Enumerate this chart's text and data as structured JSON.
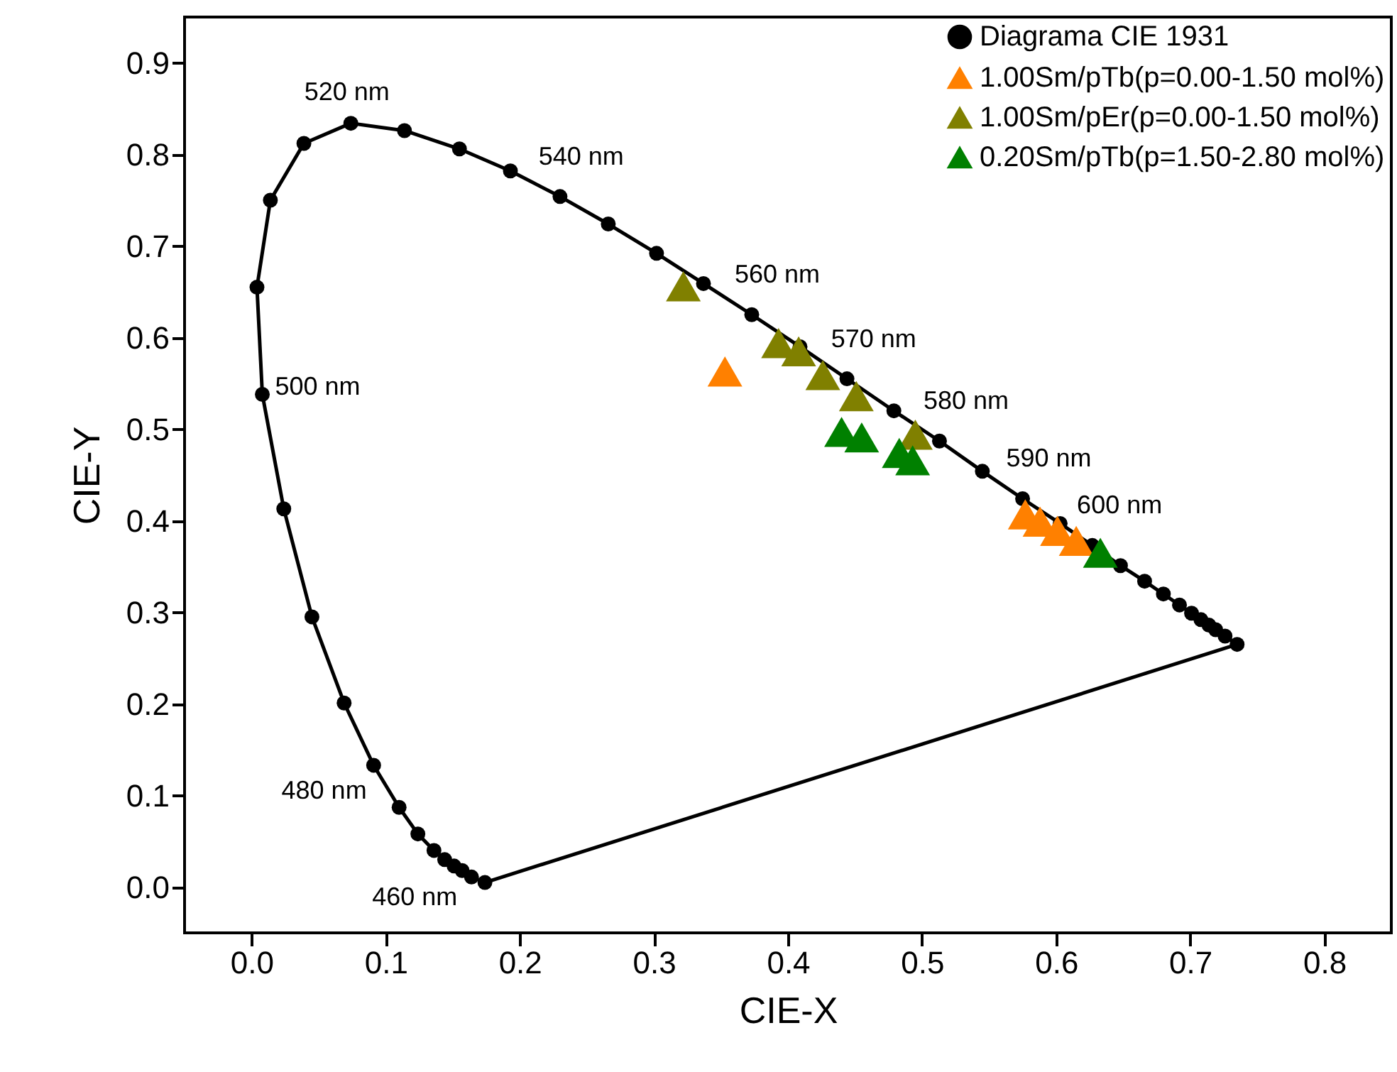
{
  "chart_data": {
    "type": "line",
    "xlabel": "CIE-X",
    "ylabel": "CIE-Y",
    "marker": "circle",
    "line_style": "solid",
    "legend": "top right",
    "grid": false,
    "xlim": [
      -0.05,
      0.85
    ],
    "ylim": [
      -0.05,
      0.95
    ],
    "xticks": [
      {
        "value": 0,
        "label": "0.0"
      },
      0.1,
      0.2,
      0.3,
      0.4,
      0.5,
      0.6,
      0.7,
      0.8
    ],
    "yticks": [
      {
        "value": 0,
        "label": "0.0"
      },
      0.1,
      0.2,
      0.3,
      0.4,
      0.5,
      0.6,
      0.7,
      0.8,
      0.9
    ],
    "series": [
      {
        "name": "Diagrama CIE 1931",
        "color": "#000000",
        "x": [
          0.174,
          0.164,
          0.157,
          0.151,
          0.144,
          0.136,
          0.124,
          0.11,
          0.091,
          0.069,
          0.045,
          0.024,
          0.008,
          0.004,
          0.014,
          0.039,
          0.074,
          0.114,
          0.155,
          0.193,
          0.23,
          0.266,
          0.302,
          0.337,
          0.373,
          0.409,
          0.444,
          0.479,
          0.513,
          0.545,
          0.575,
          0.603,
          0.627,
          0.648,
          0.666,
          0.68,
          0.692,
          0.701,
          0.708,
          0.714,
          0.719,
          0.726,
          0.735
        ],
        "values": [
          0.005,
          0.011,
          0.018,
          0.023,
          0.03,
          0.04,
          0.058,
          0.087,
          0.133,
          0.201,
          0.295,
          0.413,
          0.538,
          0.655,
          0.75,
          0.812,
          0.834,
          0.826,
          0.806,
          0.782,
          0.754,
          0.724,
          0.692,
          0.659,
          0.625,
          0.59,
          0.555,
          0.52,
          0.487,
          0.454,
          0.424,
          0.397,
          0.373,
          0.351,
          0.334,
          0.32,
          0.308,
          0.299,
          0.292,
          0.286,
          0.281,
          0.274,
          0.265
        ]
      },
      {
        "marker": "none",
        "color": "#000000",
        "x": [
          0.735,
          0.174
        ],
        "values": [
          0.265,
          0.005
        ]
      },
      {
        "name": "1.00Sm/pTb(p=0.00-1.50 mol%)",
        "type": "scatter",
        "marker": "triangle",
        "color": "#ff8000",
        "x": [
          0.353,
          0.577,
          0.588,
          0.601,
          0.615
        ],
        "values": [
          0.563,
          0.407,
          0.399,
          0.389,
          0.378
        ]
      },
      {
        "name": "1.00Sm/pEr(p=0.00-1.50 mol%)",
        "type": "scatter",
        "marker": "triangle",
        "color": "#808000",
        "x": [
          0.322,
          0.393,
          0.408,
          0.426,
          0.451,
          0.495
        ],
        "values": [
          0.656,
          0.594,
          0.585,
          0.559,
          0.536,
          0.494
        ]
      },
      {
        "name": "0.20Sm/pTb(p=1.50-2.80 mol%)",
        "type": "scatter",
        "marker": "triangle",
        "color": "#008000",
        "x": [
          0.44,
          0.455,
          0.483,
          0.493,
          0.633
        ],
        "values": [
          0.497,
          0.491,
          0.474,
          0.466,
          0.365
        ]
      }
    ],
    "annotations": [
      {
        "text": "520 nm",
        "x": 0.074,
        "y": 0.834
      },
      {
        "text": "540 nm",
        "x": 0.23,
        "y": 0.754
      },
      {
        "text": "560 nm",
        "x": 0.373,
        "y": 0.625
      },
      {
        "text": "570 nm",
        "x": 0.444,
        "y": 0.555
      },
      {
        "text": "580 nm",
        "x": 0.513,
        "y": 0.487
      },
      {
        "text": "590 nm",
        "x": 0.575,
        "y": 0.424
      },
      {
        "text": "600 nm",
        "x": 0.627,
        "y": 0.373
      },
      {
        "text": "500 nm",
        "x": 0.008,
        "y": 0.538
      },
      {
        "text": "480 nm",
        "x": 0.091,
        "y": 0.133
      },
      {
        "text": "460 nm",
        "x": 0.144,
        "y": 0.03
      }
    ]
  }
}
